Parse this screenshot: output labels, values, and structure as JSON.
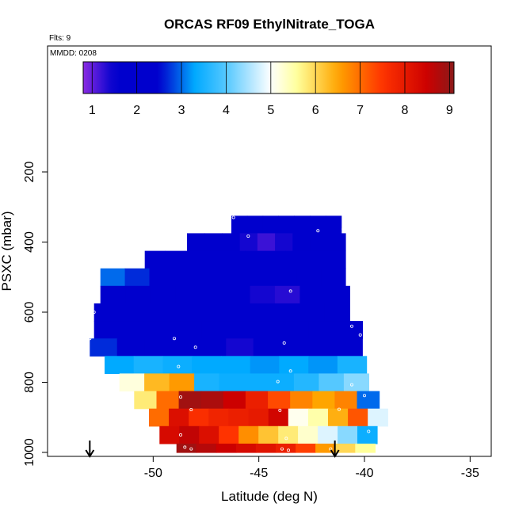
{
  "chart_data": {
    "type": "heatmap",
    "title": "ORCAS RF09 EthylNitrate_TOGA",
    "annotations": {
      "flights": "Flts: 9",
      "date": "MMDD: 0208"
    },
    "xlabel": "Latitude (deg N)",
    "ylabel": "PSXC (mbar)",
    "xlim": [
      -55,
      -34
    ],
    "ylim": [
      1000,
      0
    ],
    "xticks": [
      "-50",
      "-45",
      "-40",
      "-35"
    ],
    "xtick_values": [
      -50,
      -45,
      -40,
      -35
    ],
    "yticks": [
      "200",
      "400",
      "600",
      "800",
      "1000"
    ],
    "ytick_values": [
      200,
      400,
      600,
      800,
      1000
    ],
    "colorbar": {
      "min": 0.8,
      "max": 9.1,
      "ticks": [
        "1",
        "2",
        "3",
        "4",
        "5",
        "6",
        "7",
        "8",
        "9"
      ],
      "tick_values": [
        1,
        2,
        3,
        4,
        5,
        6,
        7,
        8,
        9
      ],
      "stops": [
        {
          "v": 0.8,
          "c": "#8a2be2"
        },
        {
          "v": 1.5,
          "c": "#0000cd"
        },
        {
          "v": 2.5,
          "c": "#0000cd"
        },
        {
          "v": 3.3,
          "c": "#00aaff"
        },
        {
          "v": 4.0,
          "c": "#55c8ff"
        },
        {
          "v": 5.0,
          "c": "#ffffff"
        },
        {
          "v": 5.6,
          "c": "#ffff99"
        },
        {
          "v": 6.5,
          "c": "#ffa500"
        },
        {
          "v": 7.5,
          "c": "#ff3300"
        },
        {
          "v": 8.5,
          "c": "#cc0000"
        },
        {
          "v": 9.1,
          "c": "#8b1a1a"
        }
      ]
    },
    "bands": [
      {
        "p_top": 325,
        "p_bot": 375,
        "lat_start": -46.3,
        "lat_end": -41.1,
        "values": [
          1.8,
          1.9,
          2.0,
          2.0,
          1.9,
          1.8,
          1.7
        ]
      },
      {
        "p_top": 375,
        "p_bot": 425,
        "lat_start": -48.4,
        "lat_end": -40.9,
        "values": [
          1.9,
          1.9,
          2.0,
          1.4,
          1.2,
          1.4,
          1.6,
          1.8,
          1.8
        ]
      },
      {
        "p_top": 425,
        "p_bot": 475,
        "lat_start": -50.4,
        "lat_end": -40.9,
        "values": [
          2.1,
          2.0,
          2.0,
          1.9,
          1.8,
          1.6,
          1.7,
          1.6,
          1.5,
          1.7
        ]
      },
      {
        "p_top": 475,
        "p_bot": 525,
        "lat_start": -52.5,
        "lat_end": -40.9,
        "values": [
          3.0,
          2.7,
          2.2,
          2.0,
          1.9,
          1.9,
          1.8,
          1.8,
          1.8,
          1.7
        ]
      },
      {
        "p_top": 525,
        "p_bot": 575,
        "lat_start": -52.5,
        "lat_end": -40.7,
        "values": [
          2.4,
          2.0,
          1.9,
          1.8,
          1.8,
          1.6,
          1.4,
          1.3,
          1.6,
          1.8
        ]
      },
      {
        "p_top": 575,
        "p_bot": 625,
        "lat_start": -52.8,
        "lat_end": -40.7,
        "values": [
          2.3,
          2.0,
          1.9,
          1.8,
          1.8,
          1.8,
          1.8,
          1.7,
          1.7,
          1.8
        ]
      },
      {
        "p_top": 625,
        "p_bot": 675,
        "lat_start": -52.8,
        "lat_end": -40.1,
        "values": [
          2.2,
          2.1,
          1.9,
          1.9,
          1.8,
          1.7,
          1.6,
          1.5,
          1.6,
          1.8
        ]
      },
      {
        "p_top": 675,
        "p_bot": 725,
        "lat_start": -53.0,
        "lat_end": -40.1,
        "values": [
          2.7,
          2.4,
          2.0,
          1.9,
          1.6,
          1.4,
          1.5,
          1.6,
          1.9,
          2.4
        ]
      },
      {
        "p_top": 725,
        "p_bot": 775,
        "lat_start": -52.3,
        "lat_end": -39.9,
        "values": [
          3.3,
          3.5,
          3.4,
          3.3,
          3.3,
          3.2,
          3.3,
          3.2,
          3.5
        ]
      },
      {
        "p_top": 775,
        "p_bot": 825,
        "lat_start": -51.6,
        "lat_end": -39.8,
        "values": [
          5.2,
          6.3,
          6.6,
          3.5,
          3.4,
          3.4,
          3.4,
          3.6,
          4.0,
          4.3
        ]
      },
      {
        "p_top": 825,
        "p_bot": 875,
        "lat_start": -50.9,
        "lat_end": -39.3,
        "values": [
          5.8,
          7.0,
          8.9,
          8.8,
          8.5,
          7.9,
          7.3,
          6.8,
          6.5,
          6.8,
          3.0
        ]
      },
      {
        "p_top": 875,
        "p_bot": 925,
        "lat_start": -50.2,
        "lat_end": -38.9,
        "values": [
          7.0,
          8.2,
          7.6,
          7.8,
          7.9,
          8.0,
          8.4,
          5.1,
          5.5,
          6.4,
          7.2,
          4.8
        ]
      },
      {
        "p_top": 925,
        "p_bot": 975,
        "lat_start": -49.7,
        "lat_end": -39.4,
        "values": [
          8.3,
          8.6,
          8.2,
          7.5,
          6.7,
          6.2,
          5.8,
          5.3,
          4.8,
          4.3,
          3.4
        ]
      },
      {
        "p_top": 975,
        "p_bot": 1000,
        "lat_start": -48.9,
        "lat_end": -39.5,
        "values": [
          8.9,
          8.7,
          8.5,
          8.3,
          8.1,
          7.9,
          7.4,
          6.6,
          6.0,
          5.6
        ]
      }
    ],
    "points": [
      {
        "lat": -46.2,
        "p": 330
      },
      {
        "lat": -42.2,
        "p": 368
      },
      {
        "lat": -45.5,
        "p": 383
      },
      {
        "lat": -41.0,
        "p": 363
      },
      {
        "lat": -40.3,
        "p": 462
      },
      {
        "lat": -43.5,
        "p": 540
      },
      {
        "lat": -52.4,
        "p": 470
      },
      {
        "lat": -40.5,
        "p": 593
      },
      {
        "lat": -52.8,
        "p": 600
      },
      {
        "lat": -40.6,
        "p": 640
      },
      {
        "lat": -40.2,
        "p": 665
      },
      {
        "lat": -43.8,
        "p": 688
      },
      {
        "lat": -53.0,
        "p": 675
      },
      {
        "lat": -49.0,
        "p": 675
      },
      {
        "lat": -48.0,
        "p": 700
      },
      {
        "lat": -48.8,
        "p": 755
      },
      {
        "lat": -43.5,
        "p": 768
      },
      {
        "lat": -44.1,
        "p": 798
      },
      {
        "lat": -40.6,
        "p": 807
      },
      {
        "lat": -40.0,
        "p": 838
      },
      {
        "lat": -48.7,
        "p": 842
      },
      {
        "lat": -48.2,
        "p": 878
      },
      {
        "lat": -44.0,
        "p": 880
      },
      {
        "lat": -41.2,
        "p": 877
      },
      {
        "lat": -39.8,
        "p": 940
      },
      {
        "lat": -48.7,
        "p": 950
      },
      {
        "lat": -43.7,
        "p": 960
      },
      {
        "lat": -48.5,
        "p": 985
      },
      {
        "lat": -48.2,
        "p": 990
      },
      {
        "lat": -43.9,
        "p": 990
      },
      {
        "lat": -43.6,
        "p": 994
      },
      {
        "lat": -41.6,
        "p": 990
      }
    ],
    "markers": [
      {
        "type": "down-arrow",
        "lat": -53.0
      },
      {
        "type": "down-arrow",
        "lat": -41.4
      }
    ]
  }
}
